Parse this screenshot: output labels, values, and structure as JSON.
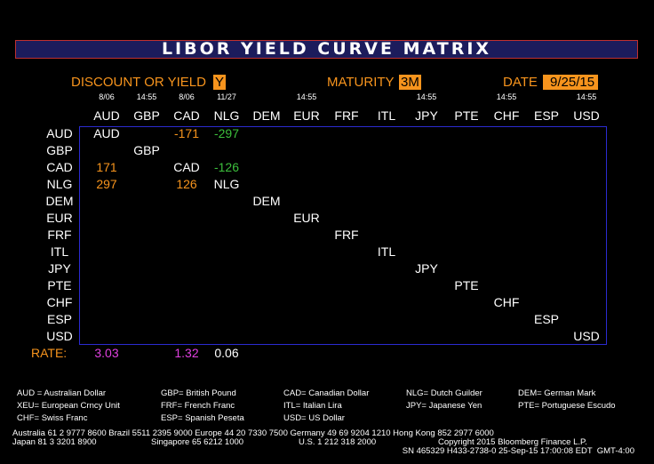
{
  "header": {
    "title": "LIBOR YIELD CURVE MATRIX"
  },
  "controls": {
    "discount_label": "DISCOUNT OR YIELD",
    "discount_value": "Y",
    "maturity_label": "MATURITY",
    "maturity_value": "3M",
    "date_label": "DATE",
    "date_value": "9/25/15"
  },
  "table": {
    "column_times": [
      "8/06",
      "14:55",
      "8/06",
      "11/27",
      null,
      "14:55",
      null,
      null,
      "14:55",
      null,
      "14:55",
      null,
      "14:55"
    ],
    "columns": [
      "AUD",
      "GBP",
      "CAD",
      "NLG",
      "DEM",
      "EUR",
      "FRF",
      "ITL",
      "JPY",
      "PTE",
      "CHF",
      "ESP",
      "USD"
    ],
    "rows": [
      {
        "label": "AUD",
        "cells": [
          {
            "text": "AUD"
          },
          null,
          {
            "text": "-171",
            "color": "#f7941d"
          },
          {
            "text": "-297",
            "color": "#3cbf3c"
          },
          null,
          null,
          null,
          null,
          null,
          null,
          null,
          null,
          null
        ]
      },
      {
        "label": "GBP",
        "cells": [
          null,
          {
            "text": "GBP"
          },
          null,
          null,
          null,
          null,
          null,
          null,
          null,
          null,
          null,
          null,
          null
        ]
      },
      {
        "label": "CAD",
        "cells": [
          {
            "text": "171",
            "color": "#f7941d"
          },
          null,
          {
            "text": "CAD"
          },
          {
            "text": "-126",
            "color": "#3cbf3c"
          },
          null,
          null,
          null,
          null,
          null,
          null,
          null,
          null,
          null
        ]
      },
      {
        "label": "NLG",
        "cells": [
          {
            "text": "297",
            "color": "#f7941d"
          },
          null,
          {
            "text": "126",
            "color": "#f7941d"
          },
          {
            "text": "NLG"
          },
          null,
          null,
          null,
          null,
          null,
          null,
          null,
          null,
          null
        ]
      },
      {
        "label": "DEM",
        "cells": [
          null,
          null,
          null,
          null,
          {
            "text": "DEM"
          },
          null,
          null,
          null,
          null,
          null,
          null,
          null,
          null
        ]
      },
      {
        "label": "EUR",
        "cells": [
          null,
          null,
          null,
          null,
          null,
          {
            "text": "EUR"
          },
          null,
          null,
          null,
          null,
          null,
          null,
          null
        ]
      },
      {
        "label": "FRF",
        "cells": [
          null,
          null,
          null,
          null,
          null,
          null,
          {
            "text": "FRF"
          },
          null,
          null,
          null,
          null,
          null,
          null
        ]
      },
      {
        "label": "ITL",
        "cells": [
          null,
          null,
          null,
          null,
          null,
          null,
          null,
          {
            "text": "ITL"
          },
          null,
          null,
          null,
          null,
          null
        ]
      },
      {
        "label": "JPY",
        "cells": [
          null,
          null,
          null,
          null,
          null,
          null,
          null,
          null,
          {
            "text": "JPY"
          },
          null,
          null,
          null,
          null
        ]
      },
      {
        "label": "PTE",
        "cells": [
          null,
          null,
          null,
          null,
          null,
          null,
          null,
          null,
          null,
          {
            "text": "PTE"
          },
          null,
          null,
          null
        ]
      },
      {
        "label": "CHF",
        "cells": [
          null,
          null,
          null,
          null,
          null,
          null,
          null,
          null,
          null,
          null,
          {
            "text": "CHF"
          },
          null,
          null
        ]
      },
      {
        "label": "ESP",
        "cells": [
          null,
          null,
          null,
          null,
          null,
          null,
          null,
          null,
          null,
          null,
          null,
          {
            "text": "ESP"
          },
          null
        ]
      },
      {
        "label": "USD",
        "cells": [
          null,
          null,
          null,
          null,
          null,
          null,
          null,
          null,
          null,
          null,
          null,
          null,
          {
            "text": "USD"
          }
        ]
      }
    ],
    "rate_label": "RATE:",
    "rates": [
      {
        "text": "3.03",
        "color": "#e040e0"
      },
      null,
      {
        "text": "1.32",
        "color": "#e040e0"
      },
      {
        "text": "0.06",
        "color": "#ffffff"
      },
      null,
      null,
      null,
      null,
      null,
      null,
      null,
      null,
      null
    ]
  },
  "legend": [
    [
      "AUD = Australian Dollar",
      "GBP= British Pound",
      "CAD= Canadian Dollar",
      "NLG= Dutch Guilder",
      "DEM= German Mark"
    ],
    [
      "XEU= European Crncy Unit",
      "FRF= French Franc",
      "ITL= Italian Lira",
      "JPY= Japanese Yen",
      "PTE= Portuguese Escudo"
    ],
    [
      "CHF= Swiss Franc",
      "ESP= Spanish Peseta",
      "USD= US Dollar"
    ]
  ],
  "footer": {
    "line1": "Australia 61 2 9777 8600 Brazil 5511 2395 9000 Europe 44 20 7330 7500 Germany 49 69 9204 1210 Hong Kong 852 2977 6000",
    "line2": [
      "Japan 81 3 3201 8900",
      "Singapore 65 6212 1000",
      "U.S. 1 212 318 2000",
      "Copyright 2015 Bloomberg Finance L.P."
    ],
    "line3": "SN 465329 H433-2738-0 25-Sep-15 17:00:08 EDT  GMT-4:00"
  }
}
